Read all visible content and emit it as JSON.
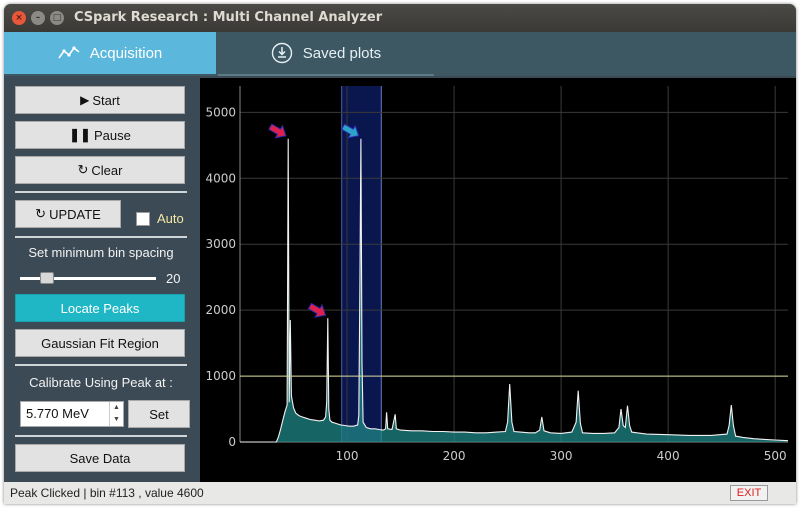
{
  "window": {
    "title": "CSpark Research : Multi Channel Analyzer"
  },
  "tabs": [
    {
      "label": "Acquisition",
      "active": true
    },
    {
      "label": "Saved plots",
      "active": false
    }
  ],
  "sidebar": {
    "start_label": "Start",
    "pause_label": "Pause",
    "clear_label": "Clear",
    "update_label": "UPDATE",
    "auto_label": "Auto",
    "auto_checked": false,
    "bin_spacing_label": "Set minimum bin spacing",
    "bin_spacing_value": "20",
    "bin_spacing_fraction": 0.2,
    "locate_peaks_label": "Locate Peaks",
    "gaussian_fit_label": "Gaussian Fit Region",
    "calibrate_label": "Calibrate Using Peak at :",
    "calibrate_value": "5.770 MeV",
    "set_label": "Set",
    "save_data_label": "Save Data"
  },
  "chart_data": {
    "type": "line",
    "xlim": [
      0,
      512
    ],
    "ylim": [
      0,
      5400
    ],
    "x_ticks": [
      "100",
      "200",
      "300",
      "400",
      "500"
    ],
    "y_ticks": [
      "0",
      "1000",
      "2000",
      "3000",
      "4000",
      "5000"
    ],
    "threshold_line": 1000,
    "region": [
      95,
      132
    ],
    "grid": true,
    "peaks": [
      {
        "x": 45,
        "y": 4600,
        "marker_color": "#e0204a"
      },
      {
        "x": 82,
        "y": 1880,
        "marker_color": "#e0204a"
      },
      {
        "x": 113,
        "y": 4600,
        "marker_color": "#2ca4c8"
      }
    ],
    "spectrum": [
      [
        0,
        0
      ],
      [
        34,
        0
      ],
      [
        36,
        80
      ],
      [
        38,
        200
      ],
      [
        40,
        330
      ],
      [
        42,
        460
      ],
      [
        44,
        560
      ],
      [
        45,
        4600
      ],
      [
        46,
        600
      ],
      [
        47,
        1850
      ],
      [
        48,
        700
      ],
      [
        50,
        520
      ],
      [
        52,
        440
      ],
      [
        55,
        400
      ],
      [
        58,
        380
      ],
      [
        62,
        360
      ],
      [
        66,
        340
      ],
      [
        70,
        330
      ],
      [
        74,
        320
      ],
      [
        78,
        330
      ],
      [
        80,
        380
      ],
      [
        81,
        600
      ],
      [
        82,
        1880
      ],
      [
        83,
        500
      ],
      [
        84,
        330
      ],
      [
        86,
        300
      ],
      [
        90,
        280
      ],
      [
        94,
        260
      ],
      [
        98,
        250
      ],
      [
        102,
        240
      ],
      [
        106,
        240
      ],
      [
        110,
        260
      ],
      [
        111,
        400
      ],
      [
        112,
        2400
      ],
      [
        113,
        4600
      ],
      [
        114,
        1200
      ],
      [
        115,
        300
      ],
      [
        118,
        220
      ],
      [
        122,
        200
      ],
      [
        126,
        200
      ],
      [
        130,
        190
      ],
      [
        134,
        180
      ],
      [
        136,
        200
      ],
      [
        137,
        450
      ],
      [
        138,
        200
      ],
      [
        142,
        190
      ],
      [
        145,
        420
      ],
      [
        146,
        200
      ],
      [
        150,
        180
      ],
      [
        160,
        170
      ],
      [
        170,
        170
      ],
      [
        180,
        160
      ],
      [
        190,
        160
      ],
      [
        200,
        150
      ],
      [
        210,
        150
      ],
      [
        220,
        140
      ],
      [
        230,
        140
      ],
      [
        240,
        150
      ],
      [
        248,
        160
      ],
      [
        250,
        300
      ],
      [
        252,
        880
      ],
      [
        254,
        300
      ],
      [
        256,
        160
      ],
      [
        262,
        150
      ],
      [
        270,
        140
      ],
      [
        276,
        140
      ],
      [
        280,
        180
      ],
      [
        282,
        380
      ],
      [
        284,
        170
      ],
      [
        290,
        140
      ],
      [
        300,
        130
      ],
      [
        310,
        150
      ],
      [
        314,
        300
      ],
      [
        316,
        780
      ],
      [
        318,
        280
      ],
      [
        320,
        140
      ],
      [
        330,
        130
      ],
      [
        340,
        130
      ],
      [
        350,
        140
      ],
      [
        354,
        220
      ],
      [
        356,
        500
      ],
      [
        358,
        250
      ],
      [
        360,
        220
      ],
      [
        362,
        550
      ],
      [
        364,
        250
      ],
      [
        366,
        150
      ],
      [
        380,
        120
      ],
      [
        400,
        110
      ],
      [
        420,
        100
      ],
      [
        440,
        100
      ],
      [
        455,
        120
      ],
      [
        457,
        250
      ],
      [
        459,
        560
      ],
      [
        461,
        250
      ],
      [
        463,
        90
      ],
      [
        470,
        70
      ],
      [
        480,
        50
      ],
      [
        490,
        40
      ],
      [
        500,
        30
      ],
      [
        512,
        20
      ]
    ]
  },
  "status": {
    "message": "Peak Clicked | bin #113 , value 4600",
    "exit_label": "EXIT"
  }
}
